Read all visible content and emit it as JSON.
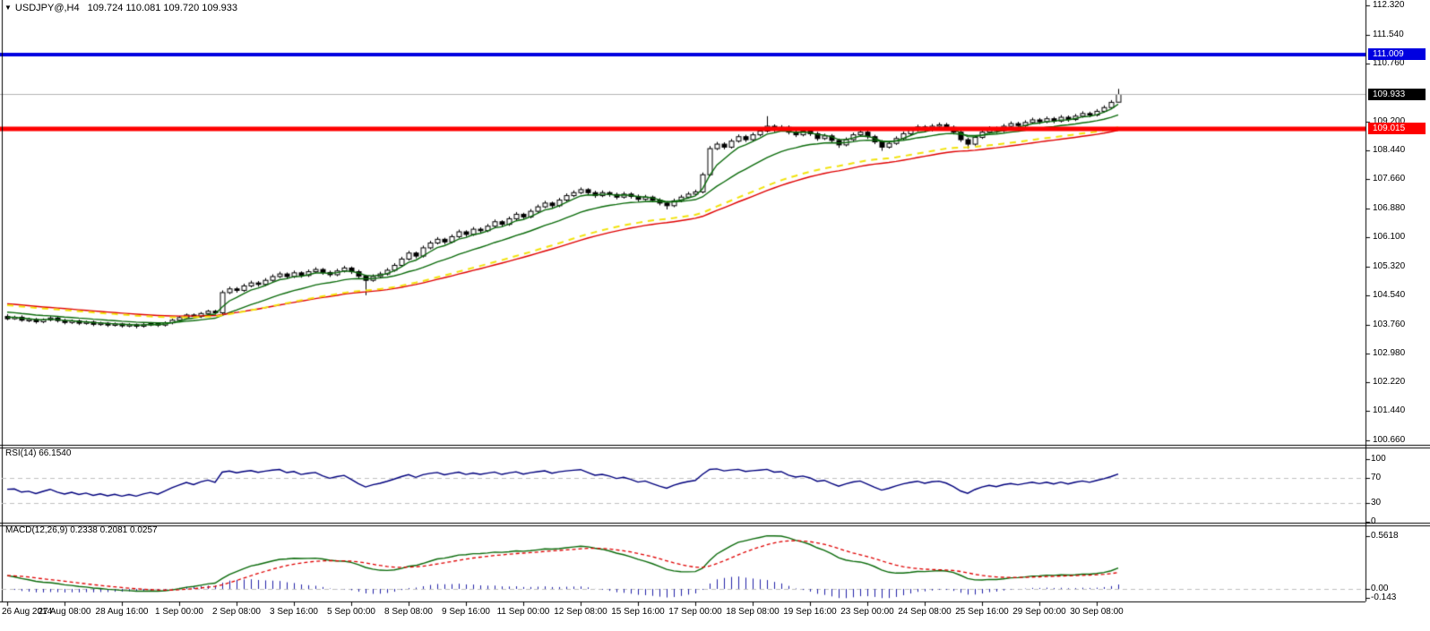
{
  "window": {
    "symbol_marker": "▼",
    "title_symbol": "USDJPY@,H4",
    "title_ohlc": "109.724 110.081 109.720 109.933"
  },
  "chart_data": {
    "type": "candlestick",
    "symbol": "USDJPY@",
    "timeframe": "H4",
    "last_bar": {
      "open": 109.724,
      "high": 110.081,
      "low": 109.72,
      "close": 109.933
    },
    "price_axis_labels": [
      "112.320",
      "111.540",
      "110.760",
      "109.200",
      "108.440",
      "107.660",
      "106.880",
      "106.100",
      "105.320",
      "104.540",
      "103.760",
      "102.980",
      "102.220",
      "101.440",
      "100.660"
    ],
    "time_axis_labels": [
      "26 Aug 2014",
      "27 Aug 08:00",
      "28 Aug 16:00",
      "1 Sep 00:00",
      "2 Sep 08:00",
      "3 Sep 16:00",
      "5 Sep 00:00",
      "8 Sep 08:00",
      "9 Sep 16:00",
      "11 Sep 00:00",
      "12 Sep 08:00",
      "15 Sep 16:00",
      "17 Sep 00:00",
      "18 Sep 08:00",
      "19 Sep 16:00",
      "23 Sep 00:00",
      "24 Sep 08:00",
      "25 Sep 16:00",
      "29 Sep 00:00",
      "30 Sep 08:00"
    ],
    "bars_per_time_label": 8,
    "hlines": [
      {
        "name": "upper-blue-level",
        "price": 111.009,
        "color": "#0000e0",
        "width": 4
      },
      {
        "name": "lower-red-level",
        "price": 109.015,
        "color": "#fe0000",
        "width": 5
      },
      {
        "name": "current-price-line",
        "price": 109.933,
        "color": "#b4b4b4",
        "width": 1
      }
    ],
    "badges": [
      {
        "text": "111.009",
        "bg": "#0000e0",
        "price": 111.009
      },
      {
        "text": "109.933",
        "bg": "#000000",
        "price": 109.933
      },
      {
        "text": "109.015",
        "bg": "#fe0000",
        "price": 109.015
      }
    ],
    "indicators": [
      {
        "pane": "rsi",
        "label": "RSI(14) 66.1540",
        "period": 14,
        "value": 66.154,
        "axis_labels": [
          "100",
          "70",
          "30",
          "0"
        ],
        "level_lines": [
          70,
          30
        ],
        "line_color": "#00007d"
      },
      {
        "pane": "macd",
        "label": "MACD(12,26,9) 0.2338 0.2081 0.0257",
        "values": {
          "macd": 0.2338,
          "signal": 0.2081,
          "histogram": 0.0257
        },
        "axis_labels": [
          "0.5618",
          "0.00",
          "-0.143"
        ],
        "macd_color": "#0b6b0b",
        "signal_color": "#e00000",
        "hist_color": "#2121a8"
      }
    ],
    "ma_colors": {
      "fast_green": "#0b6b0b",
      "slow_green": "#0b6b0b",
      "red": "#e00000",
      "yellow_dashed": "#f2e30c"
    },
    "candle_colors": {
      "bull_fill": "#ffffff",
      "bear_fill": "#000000",
      "outline": "#000000"
    },
    "candles": [
      [
        103.98,
        104.04,
        103.88,
        103.92
      ],
      [
        103.92,
        104.0,
        103.89,
        103.96
      ],
      [
        103.96,
        104.01,
        103.84,
        103.88
      ],
      [
        103.88,
        103.95,
        103.83,
        103.9
      ],
      [
        103.9,
        103.94,
        103.79,
        103.84
      ],
      [
        103.84,
        103.93,
        103.8,
        103.89
      ],
      [
        103.89,
        103.99,
        103.85,
        103.94
      ],
      [
        103.94,
        103.98,
        103.82,
        103.87
      ],
      [
        103.87,
        103.92,
        103.77,
        103.82
      ],
      [
        103.82,
        103.9,
        103.78,
        103.86
      ],
      [
        103.86,
        103.9,
        103.75,
        103.8
      ],
      [
        103.8,
        103.87,
        103.76,
        103.83
      ],
      [
        103.83,
        103.87,
        103.72,
        103.77
      ],
      [
        103.77,
        103.84,
        103.73,
        103.8
      ],
      [
        103.8,
        103.83,
        103.7,
        103.75
      ],
      [
        103.75,
        103.82,
        103.71,
        103.78
      ],
      [
        103.78,
        103.81,
        103.68,
        103.73
      ],
      [
        103.73,
        103.8,
        103.69,
        103.76
      ],
      [
        103.76,
        103.79,
        103.66,
        103.72
      ],
      [
        103.72,
        103.8,
        103.68,
        103.76
      ],
      [
        103.76,
        103.83,
        103.72,
        103.79
      ],
      [
        103.79,
        103.82,
        103.7,
        103.75
      ],
      [
        103.75,
        103.85,
        103.71,
        103.81
      ],
      [
        103.81,
        103.92,
        103.77,
        103.88
      ],
      [
        103.88,
        103.99,
        103.84,
        103.95
      ],
      [
        103.95,
        104.06,
        103.91,
        104.02
      ],
      [
        104.02,
        104.06,
        103.93,
        103.98
      ],
      [
        103.98,
        104.1,
        103.94,
        104.06
      ],
      [
        104.06,
        104.16,
        104.02,
        104.12
      ],
      [
        104.12,
        104.16,
        104.03,
        104.08
      ],
      [
        104.08,
        104.68,
        104.02,
        104.62
      ],
      [
        104.62,
        104.78,
        104.58,
        104.72
      ],
      [
        104.72,
        104.77,
        104.62,
        104.68
      ],
      [
        104.68,
        104.86,
        104.64,
        104.8
      ],
      [
        104.8,
        104.94,
        104.76,
        104.88
      ],
      [
        104.88,
        104.93,
        104.78,
        104.84
      ],
      [
        104.84,
        105.01,
        104.8,
        104.95
      ],
      [
        104.95,
        105.11,
        104.91,
        105.05
      ],
      [
        105.05,
        105.18,
        105.01,
        105.12
      ],
      [
        105.12,
        105.16,
        104.99,
        105.05
      ],
      [
        105.05,
        105.21,
        105.01,
        105.15
      ],
      [
        105.15,
        105.19,
        105.02,
        105.08
      ],
      [
        105.08,
        105.24,
        105.04,
        105.18
      ],
      [
        105.18,
        105.3,
        105.14,
        105.24
      ],
      [
        105.24,
        105.28,
        105.1,
        105.16
      ],
      [
        105.16,
        105.21,
        105.04,
        105.1
      ],
      [
        105.1,
        105.26,
        105.06,
        105.2
      ],
      [
        105.2,
        105.34,
        105.16,
        105.28
      ],
      [
        105.28,
        105.32,
        105.12,
        105.18
      ],
      [
        105.18,
        105.23,
        105.0,
        105.06
      ],
      [
        105.06,
        105.1,
        104.55,
        104.95
      ],
      [
        104.95,
        105.11,
        104.91,
        105.05
      ],
      [
        105.05,
        105.18,
        105.01,
        105.12
      ],
      [
        105.12,
        105.28,
        105.08,
        105.22
      ],
      [
        105.22,
        105.41,
        105.18,
        105.35
      ],
      [
        105.35,
        105.58,
        105.31,
        105.52
      ],
      [
        105.52,
        105.74,
        105.48,
        105.68
      ],
      [
        105.68,
        105.72,
        105.54,
        105.6
      ],
      [
        105.6,
        105.88,
        105.56,
        105.82
      ],
      [
        105.82,
        106.01,
        105.78,
        105.95
      ],
      [
        105.95,
        106.11,
        105.91,
        106.05
      ],
      [
        106.05,
        106.09,
        105.92,
        105.98
      ],
      [
        105.98,
        106.18,
        105.94,
        106.12
      ],
      [
        106.12,
        106.31,
        106.08,
        106.25
      ],
      [
        106.25,
        106.29,
        106.12,
        106.18
      ],
      [
        106.18,
        106.38,
        106.14,
        106.32
      ],
      [
        106.32,
        106.37,
        106.22,
        106.28
      ],
      [
        106.28,
        106.46,
        106.24,
        106.4
      ],
      [
        106.4,
        106.58,
        106.36,
        106.52
      ],
      [
        106.52,
        106.56,
        106.39,
        106.45
      ],
      [
        106.45,
        106.66,
        106.41,
        106.6
      ],
      [
        106.6,
        106.78,
        106.56,
        106.72
      ],
      [
        106.72,
        106.76,
        106.59,
        106.65
      ],
      [
        106.65,
        106.86,
        106.61,
        106.8
      ],
      [
        106.8,
        106.98,
        106.76,
        106.92
      ],
      [
        106.92,
        107.08,
        106.88,
        107.02
      ],
      [
        107.02,
        107.06,
        106.89,
        106.95
      ],
      [
        106.95,
        107.16,
        106.91,
        107.1
      ],
      [
        107.1,
        107.28,
        107.06,
        107.22
      ],
      [
        107.22,
        107.36,
        107.18,
        107.3
      ],
      [
        107.3,
        107.44,
        107.26,
        107.38
      ],
      [
        107.38,
        107.42,
        107.24,
        107.3
      ],
      [
        107.3,
        107.35,
        107.16,
        107.22
      ],
      [
        107.22,
        107.36,
        107.18,
        107.3
      ],
      [
        107.3,
        107.34,
        107.19,
        107.25
      ],
      [
        107.25,
        107.3,
        107.12,
        107.18
      ],
      [
        107.18,
        107.32,
        107.14,
        107.26
      ],
      [
        107.26,
        107.31,
        107.14,
        107.2
      ],
      [
        107.2,
        107.25,
        107.06,
        107.12
      ],
      [
        107.12,
        107.24,
        107.08,
        107.18
      ],
      [
        107.18,
        107.22,
        107.04,
        107.1
      ],
      [
        107.1,
        107.15,
        106.96,
        107.02
      ],
      [
        107.02,
        107.07,
        106.85,
        106.95
      ],
      [
        106.95,
        107.14,
        106.91,
        107.08
      ],
      [
        107.08,
        107.24,
        107.04,
        107.18
      ],
      [
        107.18,
        107.32,
        107.14,
        107.26
      ],
      [
        107.26,
        107.38,
        107.22,
        107.32
      ],
      [
        107.32,
        107.84,
        107.28,
        107.78
      ],
      [
        107.78,
        108.55,
        107.74,
        108.48
      ],
      [
        108.48,
        108.66,
        108.44,
        108.6
      ],
      [
        108.6,
        108.65,
        108.46,
        108.52
      ],
      [
        108.52,
        108.74,
        108.48,
        108.68
      ],
      [
        108.68,
        108.86,
        108.64,
        108.8
      ],
      [
        108.8,
        108.85,
        108.66,
        108.72
      ],
      [
        108.72,
        108.91,
        108.68,
        108.85
      ],
      [
        108.85,
        109.01,
        108.81,
        108.95
      ],
      [
        108.95,
        109.35,
        108.91,
        109.08
      ],
      [
        109.08,
        109.13,
        108.92,
        108.98
      ],
      [
        108.98,
        109.11,
        108.94,
        109.05
      ],
      [
        109.05,
        109.1,
        108.86,
        108.92
      ],
      [
        108.92,
        108.97,
        108.79,
        108.85
      ],
      [
        108.85,
        109.01,
        108.81,
        108.95
      ],
      [
        108.95,
        109.0,
        108.82,
        108.88
      ],
      [
        108.88,
        108.93,
        108.69,
        108.75
      ],
      [
        108.75,
        108.88,
        108.71,
        108.82
      ],
      [
        108.82,
        108.87,
        108.64,
        108.7
      ],
      [
        108.7,
        108.75,
        108.5,
        108.58
      ],
      [
        108.58,
        108.78,
        108.54,
        108.72
      ],
      [
        108.72,
        108.91,
        108.68,
        108.85
      ],
      [
        108.85,
        108.98,
        108.81,
        108.92
      ],
      [
        108.92,
        108.97,
        108.74,
        108.8
      ],
      [
        108.8,
        108.85,
        108.6,
        108.66
      ],
      [
        108.66,
        108.71,
        108.42,
        108.52
      ],
      [
        108.52,
        108.68,
        108.48,
        108.62
      ],
      [
        108.62,
        108.81,
        108.58,
        108.75
      ],
      [
        108.75,
        108.94,
        108.71,
        108.88
      ],
      [
        108.88,
        109.04,
        108.84,
        108.98
      ],
      [
        108.98,
        109.12,
        108.94,
        109.06
      ],
      [
        109.06,
        109.11,
        108.92,
        108.98
      ],
      [
        108.98,
        109.14,
        108.94,
        109.08
      ],
      [
        109.08,
        109.18,
        109.04,
        109.12
      ],
      [
        109.12,
        109.17,
        108.99,
        109.05
      ],
      [
        109.05,
        109.1,
        108.86,
        108.92
      ],
      [
        108.92,
        108.97,
        108.66,
        108.72
      ],
      [
        108.72,
        108.77,
        108.48,
        108.6
      ],
      [
        108.6,
        108.84,
        108.56,
        108.78
      ],
      [
        108.78,
        108.98,
        108.74,
        108.92
      ],
      [
        108.92,
        109.08,
        108.88,
        109.02
      ],
      [
        109.02,
        109.07,
        108.9,
        108.96
      ],
      [
        108.96,
        109.14,
        108.92,
        109.08
      ],
      [
        109.08,
        109.21,
        109.04,
        109.15
      ],
      [
        109.15,
        109.2,
        109.04,
        109.1
      ],
      [
        109.1,
        109.24,
        109.06,
        109.18
      ],
      [
        109.18,
        109.31,
        109.14,
        109.25
      ],
      [
        109.25,
        109.3,
        109.14,
        109.2
      ],
      [
        109.2,
        109.34,
        109.16,
        109.28
      ],
      [
        109.28,
        109.33,
        109.16,
        109.22
      ],
      [
        109.22,
        109.38,
        109.18,
        109.32
      ],
      [
        109.32,
        109.37,
        109.2,
        109.26
      ],
      [
        109.26,
        109.41,
        109.22,
        109.35
      ],
      [
        109.35,
        109.48,
        109.31,
        109.42
      ],
      [
        109.42,
        109.47,
        109.32,
        109.38
      ],
      [
        109.38,
        109.54,
        109.34,
        109.48
      ],
      [
        109.48,
        109.64,
        109.44,
        109.58
      ],
      [
        109.58,
        109.78,
        109.54,
        109.72
      ],
      [
        109.724,
        110.081,
        109.72,
        109.933
      ]
    ]
  }
}
